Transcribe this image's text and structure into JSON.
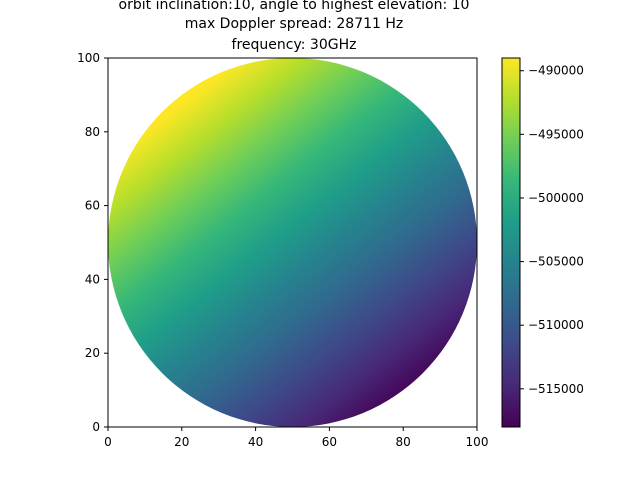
{
  "chart_data": {
    "type": "heatmap",
    "title_lines": [
      "orbit inclination:10, angle to highest elevation: 10",
      "max Doppler spread: 28711 Hz",
      "frequency: 30GHz"
    ],
    "xlabel": "",
    "ylabel": "",
    "xlim": [
      0,
      100
    ],
    "ylim": [
      0,
      100
    ],
    "x_ticks": [
      0,
      20,
      40,
      60,
      80,
      100
    ],
    "y_ticks": [
      0,
      20,
      40,
      60,
      80,
      100
    ],
    "x_tick_labels": [
      "0",
      "20",
      "40",
      "60",
      "80",
      "100"
    ],
    "y_tick_labels": [
      "0",
      "20",
      "40",
      "60",
      "80",
      "100"
    ],
    "field": {
      "shape": "circle",
      "center": [
        50,
        50
      ],
      "radius": 50,
      "value_at_center": -503000,
      "gradient_direction_deg": 128,
      "max_value": -489000,
      "min_value": -518000
    },
    "colorbar": {
      "colormap": "viridis",
      "range": [
        -518000,
        -489000
      ],
      "ticks": [
        -515000,
        -510000,
        -505000,
        -500000,
        -495000,
        -490000
      ],
      "tick_labels": [
        "−515000",
        "−510000",
        "−505000",
        "−500000",
        "−495000",
        "−490000"
      ]
    },
    "grid": false
  }
}
